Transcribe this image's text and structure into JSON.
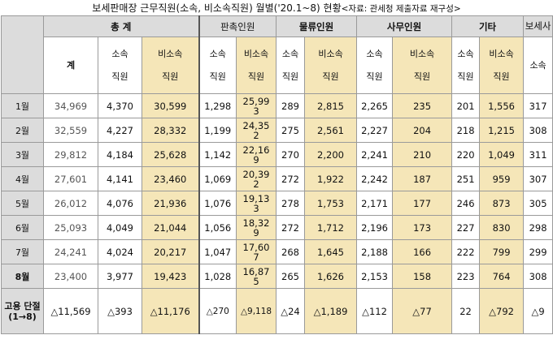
{
  "title": {
    "main": "보세판매장 근무직원(소속, 비소속직원) 월별('20.1~8) 현황",
    "note": "<자료: 관세청 제출자료 재구성>"
  },
  "headers": {
    "groups": [
      "총 계",
      "판촉인원",
      "물류인원",
      "사무인원",
      "기타",
      "보세사"
    ],
    "total_col": "계",
    "sub_sosok": "소속",
    "sub_bisosok": "비소속",
    "sub_jikwon": "직원"
  },
  "rows": [
    {
      "month": "1월",
      "v": [
        "34,969",
        "4,370",
        "30,599",
        "1,298",
        "25,993",
        "289",
        "2,815",
        "2,265",
        "235",
        "201",
        "1,556",
        "317"
      ]
    },
    {
      "month": "2월",
      "v": [
        "32,559",
        "4,227",
        "28,332",
        "1,199",
        "24,352",
        "275",
        "2,561",
        "2,227",
        "204",
        "218",
        "1,215",
        "308"
      ]
    },
    {
      "month": "3월",
      "v": [
        "29,812",
        "4,184",
        "25,628",
        "1,142",
        "22,169",
        "270",
        "2,200",
        "2,241",
        "210",
        "220",
        "1,049",
        "311"
      ]
    },
    {
      "month": "4월",
      "v": [
        "27,601",
        "4,141",
        "23,460",
        "1,069",
        "20,392",
        "272",
        "1,922",
        "2,242",
        "187",
        "251",
        "959",
        "307"
      ]
    },
    {
      "month": "5월",
      "v": [
        "26,012",
        "4,076",
        "21,936",
        "1,076",
        "19,133",
        "278",
        "1,753",
        "2,171",
        "177",
        "246",
        "873",
        "305"
      ]
    },
    {
      "month": "6월",
      "v": [
        "25,093",
        "4,049",
        "21,044",
        "1,056",
        "18,329",
        "272",
        "1,712",
        "2,196",
        "173",
        "227",
        "830",
        "298"
      ]
    },
    {
      "month": "7월",
      "v": [
        "24,241",
        "4,024",
        "20,217",
        "1,047",
        "17,607",
        "268",
        "1,645",
        "2,188",
        "166",
        "222",
        "799",
        "299"
      ]
    },
    {
      "month": "8월",
      "v": [
        "23,400",
        "3,977",
        "19,423",
        "1,028",
        "16,875",
        "265",
        "1,626",
        "2,153",
        "158",
        "223",
        "764",
        "308"
      ]
    }
  ],
  "change_row": {
    "label": "고용 단절 (1→8)",
    "v": [
      "△11,569",
      "△393",
      "△11,176",
      "△270",
      "△9,118",
      "△24",
      "△1,189",
      "△112",
      "△77",
      "22",
      "△792",
      "△9"
    ]
  },
  "colors": {
    "header_bg": "#dcdcdc",
    "highlight_bg": "#f5e6b8",
    "border": "#9a9a9a"
  }
}
